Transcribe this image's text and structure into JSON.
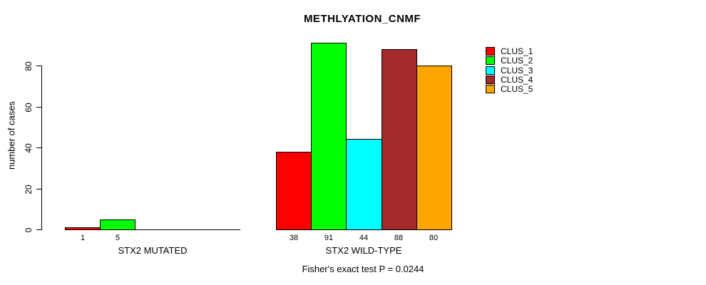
{
  "title": "METHLYATION_CNMF",
  "y_axis": {
    "label": "number of cases",
    "ticks": [
      "0",
      "20",
      "40",
      "60",
      "80"
    ]
  },
  "legend": {
    "items": [
      {
        "label": "CLUS_1",
        "color": "#ff0000"
      },
      {
        "label": "CLUS_2",
        "color": "#00ff00"
      },
      {
        "label": "CLUS_3",
        "color": "#00ffff"
      },
      {
        "label": "CLUS_4",
        "color": "#a52a2a"
      },
      {
        "label": "CLUS_5",
        "color": "#ffa500"
      }
    ]
  },
  "groups": [
    {
      "label": "STX2 MUTATED",
      "bars": [
        {
          "cluster": "CLUS_1",
          "value": 1,
          "label": "1",
          "color": "#ff0000"
        },
        {
          "cluster": "CLUS_2",
          "value": 5,
          "label": "5",
          "color": "#00ff00"
        },
        {
          "cluster": "CLUS_3",
          "value": 0,
          "label": "",
          "color": "#00ffff"
        },
        {
          "cluster": "CLUS_4",
          "value": 0,
          "label": "",
          "color": "#a52a2a"
        },
        {
          "cluster": "CLUS_5",
          "value": 0,
          "label": "",
          "color": "#ffa500"
        }
      ]
    },
    {
      "label": "STX2 WILD-TYPE",
      "bars": [
        {
          "cluster": "CLUS_1",
          "value": 38,
          "label": "38",
          "color": "#ff0000"
        },
        {
          "cluster": "CLUS_2",
          "value": 91,
          "label": "91",
          "color": "#00ff00"
        },
        {
          "cluster": "CLUS_3",
          "value": 44,
          "label": "44",
          "color": "#00ffff"
        },
        {
          "cluster": "CLUS_4",
          "value": 88,
          "label": "88",
          "color": "#a52a2a"
        },
        {
          "cluster": "CLUS_5",
          "value": 80,
          "label": "80",
          "color": "#ffa500"
        }
      ]
    }
  ],
  "footnote": "Fisher's exact test P = 0.0244",
  "chart_data": {
    "type": "bar",
    "title": "METHLYATION_CNMF",
    "ylabel": "number of cases",
    "xlabel": "",
    "ylim": [
      0,
      91
    ],
    "y_ticks": [
      0,
      20,
      40,
      60,
      80
    ],
    "grid": false,
    "legend_position": "right",
    "categories": [
      "STX2 MUTATED",
      "STX2 WILD-TYPE"
    ],
    "series": [
      {
        "name": "CLUS_1",
        "color": "#ff0000",
        "values": [
          1,
          38
        ]
      },
      {
        "name": "CLUS_2",
        "color": "#00ff00",
        "values": [
          5,
          91
        ]
      },
      {
        "name": "CLUS_3",
        "color": "#00ffff",
        "values": [
          0,
          44
        ]
      },
      {
        "name": "CLUS_4",
        "color": "#a52a2a",
        "values": [
          0,
          88
        ]
      },
      {
        "name": "CLUS_5",
        "color": "#ffa500",
        "values": [
          0,
          80
        ]
      }
    ],
    "annotation": "Fisher's exact test P = 0.0244"
  }
}
